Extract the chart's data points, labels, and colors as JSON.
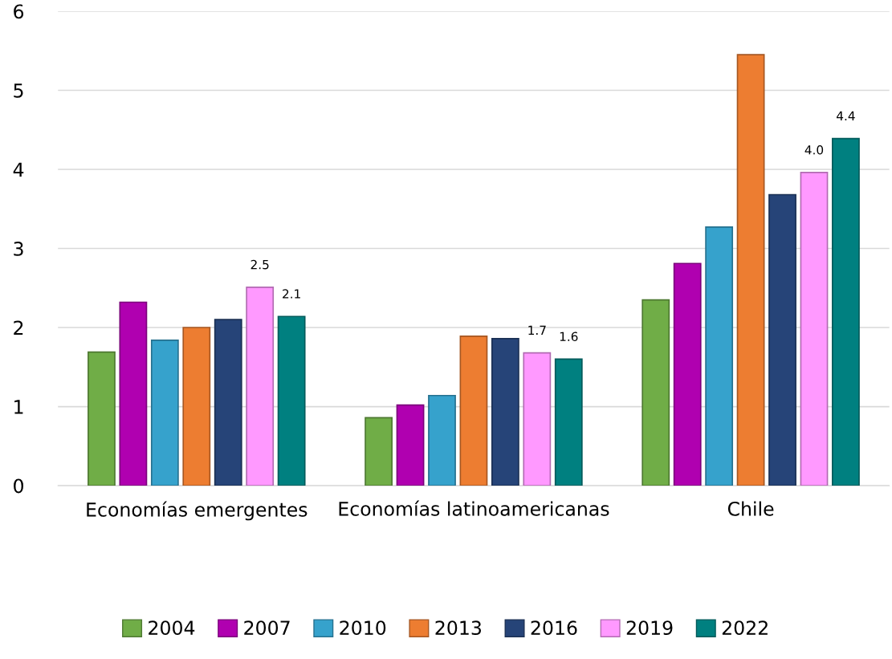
{
  "chart_data": {
    "type": "bar",
    "categories": [
      "Economías emergentes",
      "Economías latinoamericanas",
      "Chile"
    ],
    "series": [
      {
        "name": "2004",
        "color": "#70ad47",
        "values": [
          1.69,
          0.86,
          2.35
        ]
      },
      {
        "name": "2007",
        "color": "#b000b0",
        "values": [
          2.32,
          1.02,
          2.81
        ]
      },
      {
        "name": "2010",
        "color": "#36a2cc",
        "values": [
          1.84,
          1.14,
          3.27
        ]
      },
      {
        "name": "2013",
        "color": "#ed7d31",
        "values": [
          2.0,
          1.89,
          5.45
        ]
      },
      {
        "name": "2016",
        "color": "#264478",
        "values": [
          2.1,
          1.86,
          3.68
        ]
      },
      {
        "name": "2019",
        "color": "#ff99ff",
        "values": [
          2.51,
          1.68,
          3.96
        ],
        "value_labels": [
          "2.5",
          "1.7",
          "4.0"
        ]
      },
      {
        "name": "2022",
        "color": "#008080",
        "values": [
          2.14,
          1.6,
          4.39
        ],
        "value_labels": [
          "2.1",
          "1.6",
          "4.4"
        ]
      }
    ],
    "ylim": [
      0,
      6
    ],
    "yticks": [
      0,
      1,
      2,
      3,
      4,
      5,
      6
    ],
    "grid": "y",
    "legend": "bottom"
  }
}
